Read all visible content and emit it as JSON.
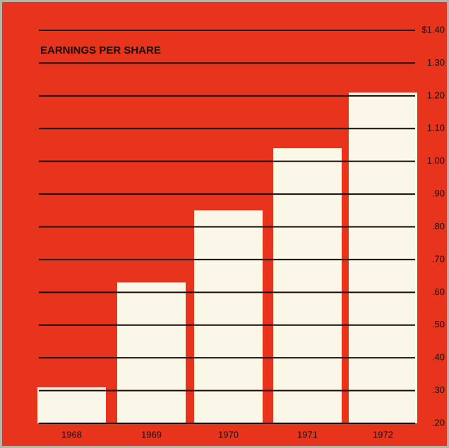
{
  "chart_data": {
    "type": "bar",
    "title": "EARNINGS PER SHARE",
    "categories": [
      "1968",
      "1969",
      "1970",
      "1971",
      "1972"
    ],
    "values": [
      0.31,
      0.63,
      0.85,
      1.04,
      1.21
    ],
    "color": "#fbf7e8",
    "ylim": [
      0.2,
      1.4
    ],
    "yticks": [
      {
        "value": 0.2,
        "label": ".20"
      },
      {
        "value": 0.3,
        "label": ".30"
      },
      {
        "value": 0.4,
        "label": ".40"
      },
      {
        "value": 0.5,
        "label": ".50"
      },
      {
        "value": 0.6,
        "label": ".60"
      },
      {
        "value": 0.7,
        "label": ".70"
      },
      {
        "value": 0.8,
        "label": ".80"
      },
      {
        "value": 0.9,
        "label": ".90"
      },
      {
        "value": 1.0,
        "label": "1.00"
      },
      {
        "value": 1.1,
        "label": "1.10"
      },
      {
        "value": 1.2,
        "label": "1.20"
      },
      {
        "value": 1.3,
        "label": "1.30"
      },
      {
        "value": 1.4,
        "label": "$1.40"
      }
    ],
    "grid": true
  }
}
